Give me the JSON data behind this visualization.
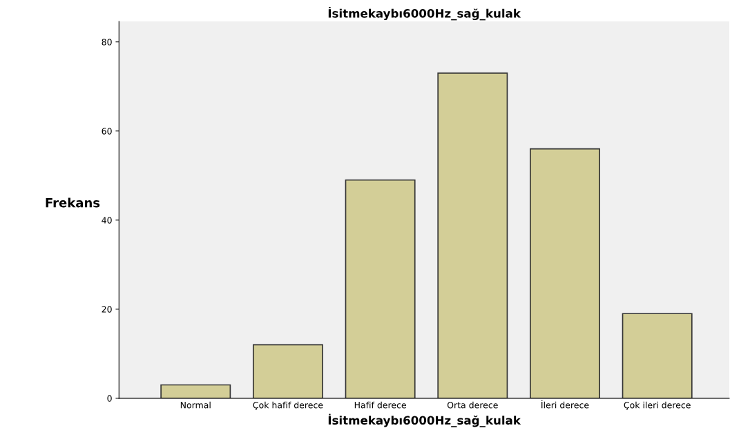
{
  "chart_data": {
    "type": "bar",
    "title": "İsitmekaybı6000Hz_sağ_kulak",
    "xlabel": "İsitmekaybı6000Hz_sağ_kulak",
    "ylabel": "Frekans",
    "categories": [
      "Normal",
      "Çok hafif derece",
      "Hafif derece",
      "Orta derece",
      "İleri derece",
      "Çok ileri derece"
    ],
    "values": [
      3,
      12,
      49,
      73,
      56,
      19
    ],
    "color": "#d3ce97",
    "ylim": [
      0,
      84.6
    ],
    "yticks": [
      0,
      20,
      40,
      60,
      80
    ],
    "grid": false
  }
}
